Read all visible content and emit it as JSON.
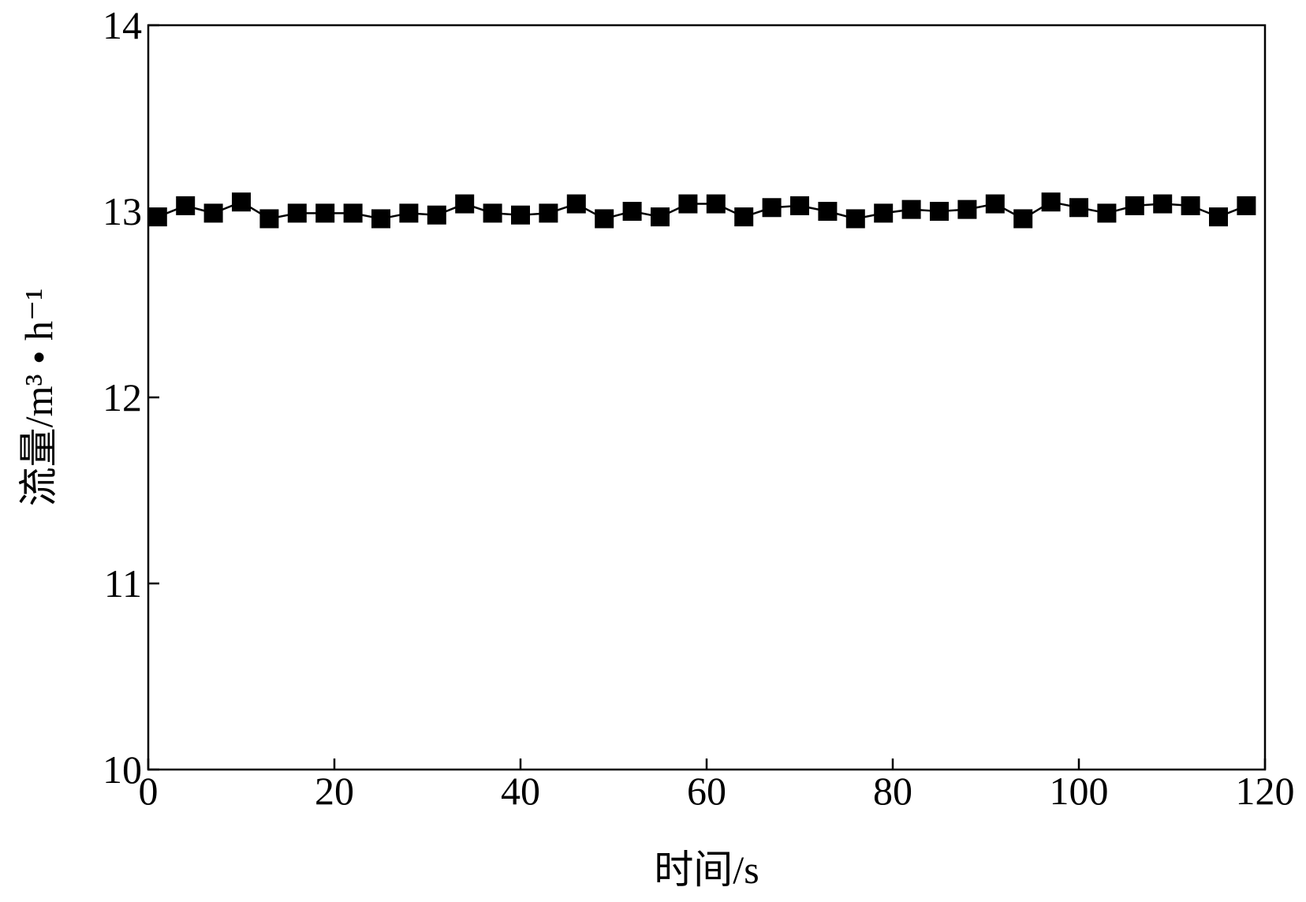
{
  "chart_data": {
    "type": "line",
    "x_label": "时间/s",
    "y_label": "流量/m³ • h⁻¹",
    "x": [
      1,
      4,
      7,
      10,
      13,
      16,
      19,
      22,
      25,
      28,
      31,
      34,
      37,
      40,
      43,
      46,
      49,
      52,
      55,
      58,
      61,
      64,
      67,
      70,
      73,
      76,
      79,
      82,
      85,
      88,
      91,
      94,
      97,
      100,
      103,
      106,
      109,
      112,
      115,
      118
    ],
    "series": [
      {
        "color": "#000000",
        "values": [
          12.97,
          13.03,
          12.99,
          13.05,
          12.96,
          12.99,
          12.99,
          12.99,
          12.96,
          12.99,
          12.98,
          13.04,
          12.99,
          12.98,
          12.99,
          13.04,
          12.96,
          13.0,
          12.97,
          13.04,
          13.04,
          12.97,
          13.02,
          13.03,
          13.0,
          12.96,
          12.99,
          13.01,
          13.0,
          13.01,
          13.04,
          12.96,
          13.05,
          13.02,
          12.99,
          13.03,
          13.04,
          13.03,
          12.97,
          13.03
        ]
      }
    ],
    "xlim": [
      0,
      120
    ],
    "xticks": [
      0,
      20,
      40,
      60,
      80,
      100,
      120
    ],
    "ylim": [
      10,
      14
    ],
    "yticks": [
      10,
      11,
      12,
      13,
      14
    ]
  }
}
